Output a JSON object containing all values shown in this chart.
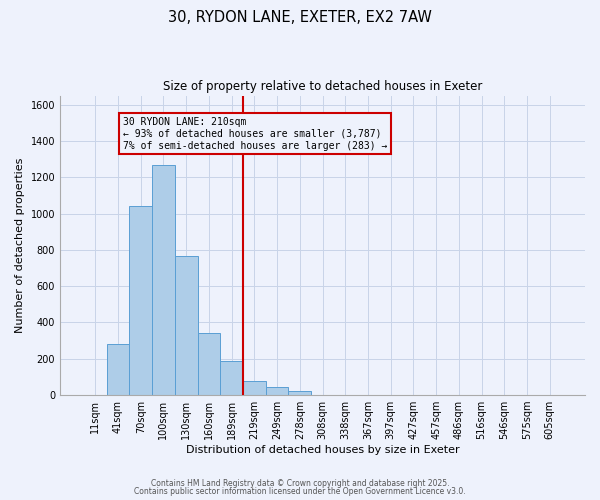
{
  "title": "30, RYDON LANE, EXETER, EX2 7AW",
  "subtitle": "Size of property relative to detached houses in Exeter",
  "xlabel": "Distribution of detached houses by size in Exeter",
  "ylabel": "Number of detached properties",
  "bar_labels": [
    "11sqm",
    "41sqm",
    "70sqm",
    "100sqm",
    "130sqm",
    "160sqm",
    "189sqm",
    "219sqm",
    "249sqm",
    "278sqm",
    "308sqm",
    "338sqm",
    "367sqm",
    "397sqm",
    "427sqm",
    "457sqm",
    "486sqm",
    "516sqm",
    "546sqm",
    "575sqm",
    "605sqm"
  ],
  "bar_values": [
    0,
    280,
    1040,
    1270,
    765,
    340,
    185,
    80,
    45,
    25,
    0,
    0,
    0,
    0,
    0,
    0,
    0,
    0,
    0,
    0,
    0
  ],
  "bar_color": "#aecde8",
  "bar_edge_color": "#5a9fd4",
  "vline_x_index": 7,
  "vline_color": "#cc0000",
  "annotation_title": "30 RYDON LANE: 210sqm",
  "annotation_line1": "← 93% of detached houses are smaller (3,787)",
  "annotation_line2": "7% of semi-detached houses are larger (283) →",
  "annotation_box_edge": "#cc0000",
  "ylim": [
    0,
    1650
  ],
  "yticks": [
    0,
    200,
    400,
    600,
    800,
    1000,
    1200,
    1400,
    1600
  ],
  "footer1": "Contains HM Land Registry data © Crown copyright and database right 2025.",
  "footer2": "Contains public sector information licensed under the Open Government Licence v3.0.",
  "bg_color": "#eef2fc",
  "grid_color": "#c8d4e8"
}
